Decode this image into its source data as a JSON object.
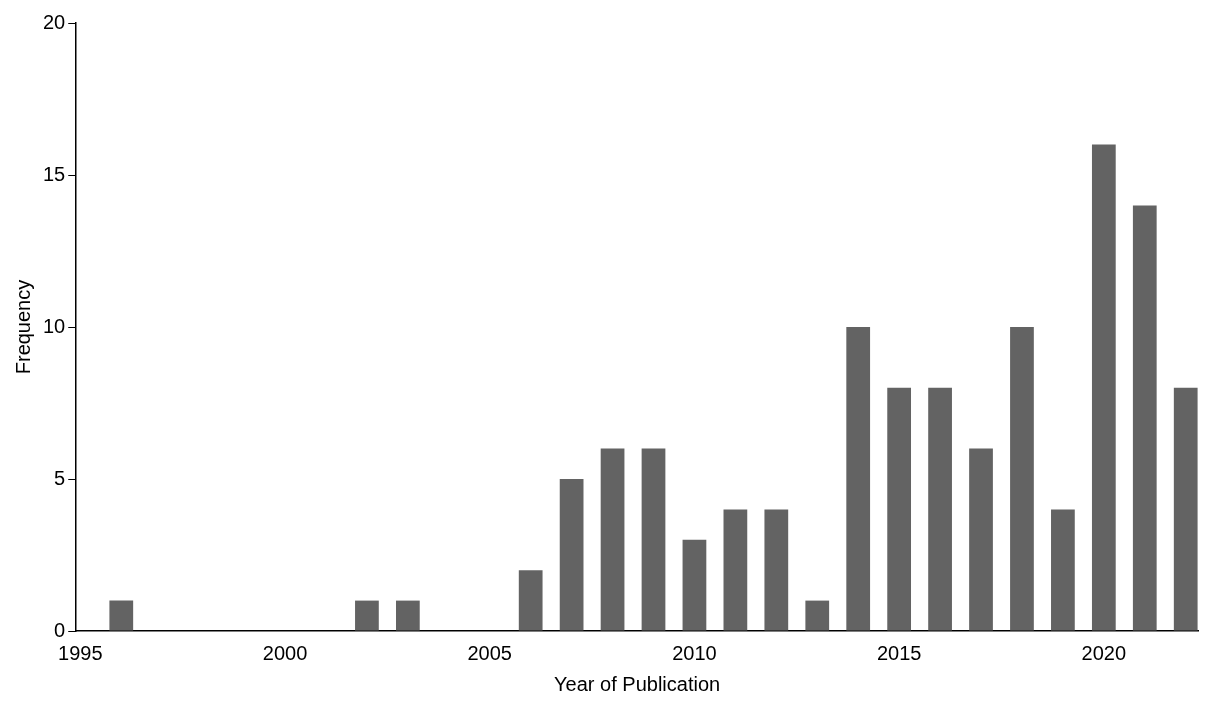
{
  "chart_data": {
    "type": "bar",
    "xlabel": "Year of Publication",
    "ylabel": "Frequency",
    "x": [
      1996,
      2002,
      2003,
      2006,
      2007,
      2008,
      2009,
      2010,
      2011,
      2012,
      2013,
      2014,
      2015,
      2016,
      2017,
      2018,
      2019,
      2020,
      2021,
      2022
    ],
    "values": [
      1,
      1,
      1,
      2,
      5,
      6,
      6,
      3,
      4,
      4,
      1,
      10,
      8,
      8,
      6,
      10,
      4,
      16,
      14,
      8
    ],
    "color": "#636363",
    "xlim": [
      1994.9,
      2022.3
    ],
    "xticks": [
      1995,
      2000,
      2005,
      2010,
      2015,
      2020
    ],
    "ylim": [
      0,
      20
    ],
    "yticks": [
      0,
      5,
      10,
      15,
      20
    ],
    "grid": false,
    "legend": false
  }
}
